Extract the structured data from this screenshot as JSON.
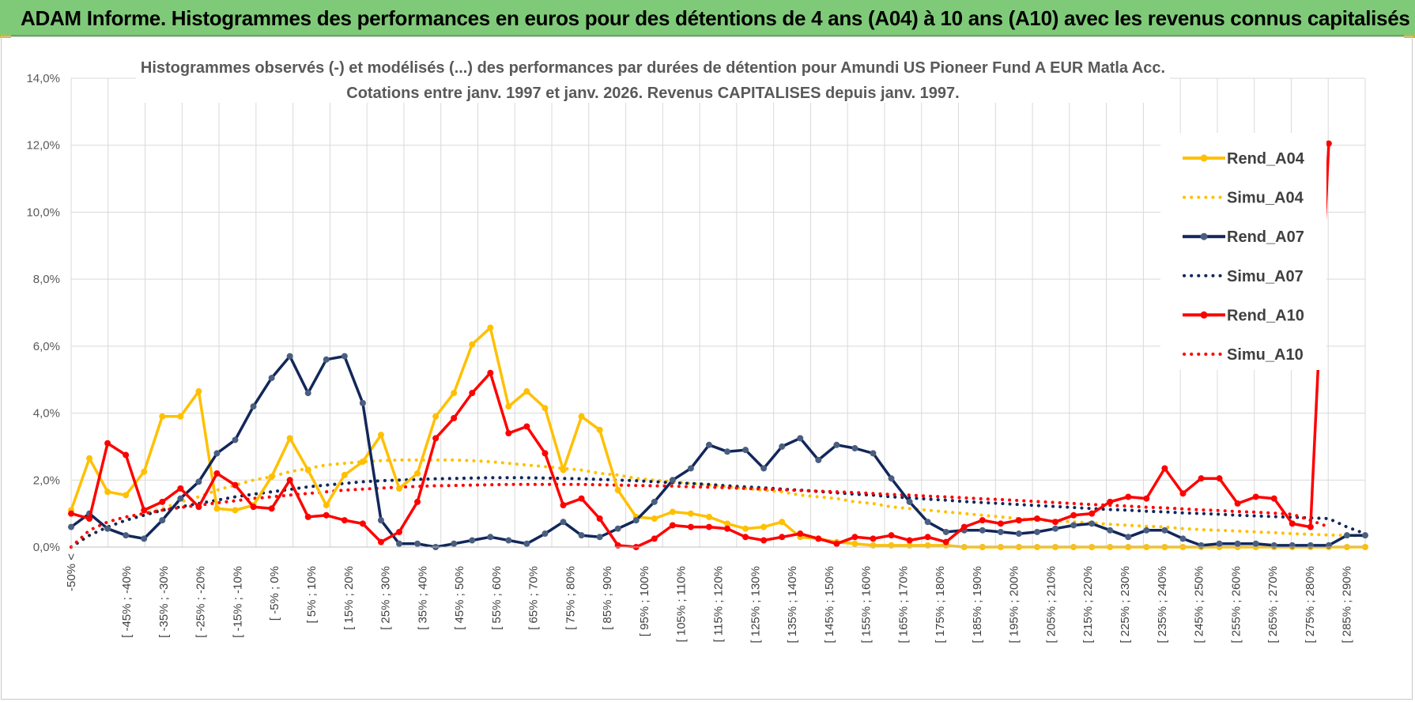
{
  "banner": {
    "title": "ADAM Informe. Histogrammes des performances en euros pour des détentions de 4 ans (A04) à 10 ans (A10) avec les revenus connus capitalisés"
  },
  "colors": {
    "A04": "#ffc000",
    "A07": "#12275a",
    "A10": "#ff0000",
    "grid": "#d9d9d9",
    "banner": "#7fca78"
  },
  "chart_data": {
    "type": "line",
    "title_line1": "Histogrammes observés (-) et modélisés (...) des performances par durées de détention pour Amundi US Pioneer Fund A EUR Matla Acc.",
    "title_line2": "Cotations entre janv. 1997 et janv. 2026. Revenus CAPITALISES depuis janv. 1997.",
    "ylim": [
      0,
      14
    ],
    "yticks": [
      "0,0%",
      "2,0%",
      "4,0%",
      "6,0%",
      "8,0%",
      "10,0%",
      "12,0%",
      "14,0%"
    ],
    "x_labels": [
      "-50% <",
      "[ -45% ; -40%",
      "[ -35% ; -30%",
      "[ -25% ; -20%",
      "[ -15% ; -10%",
      "[ -5% ; 0%",
      "[ 5% ; 10%",
      "[ 15% ; 20%",
      "[ 25% ; 30%",
      "[ 35% ; 40%",
      "[ 45% ; 50%",
      "[ 55% ; 60%",
      "[ 65% ; 70%",
      "[ 75% ; 80%",
      "[ 85% ; 90%",
      "[ 95% ; 100%",
      "[ 105% ; 110%",
      "[ 115% ; 120%",
      "[ 125% ; 130%",
      "[ 135% ; 140%",
      "[ 145% ; 150%",
      "[ 155% ; 160%",
      "[ 165% ; 170%",
      "[ 175% ; 180%",
      "[ 185% ; 190%",
      "[ 195% ; 200%",
      "[ 205% ; 210%",
      "[ 215% ; 220%",
      "[ 225% ; 230%",
      "[ 235% ; 240%",
      "[ 245% ; 250%",
      "[ 255% ; 260%",
      "[ 265% ; 270%",
      "[ 275% ; 280%",
      "[ 285% ; 290%"
    ],
    "series": [
      {
        "name": "Rend_A04",
        "style": "solid",
        "color_key": "A04",
        "values": [
          1.1,
          2.65,
          1.65,
          1.55,
          2.25,
          3.9,
          3.9,
          4.65,
          1.15,
          1.1,
          1.25,
          2.1,
          3.25,
          2.3,
          1.25,
          2.15,
          2.55,
          3.35,
          1.75,
          2.2,
          3.9,
          4.6,
          6.05,
          6.55,
          4.2,
          4.65,
          4.15,
          2.3,
          3.9,
          3.5,
          1.7,
          0.9,
          0.85,
          1.05,
          1.0,
          0.9,
          0.7,
          0.55,
          0.6,
          0.75,
          0.3,
          0.25,
          0.15,
          0.1,
          0.05,
          0.05,
          0.05,
          0.05,
          0.05,
          0.0,
          0.0,
          0.0,
          0.0,
          0.0,
          0.0,
          0.0,
          0.0,
          0.0,
          0.0,
          0.0,
          0.0,
          0.0,
          0.0,
          0.0,
          0.0,
          0.0,
          0.0,
          0.0,
          0.0,
          0.0,
          0.0,
          0.0
        ]
      },
      {
        "name": "Simu_A04",
        "style": "dotted",
        "color_key": "A04",
        "values": [
          0.0,
          0.35,
          0.6,
          0.8,
          1.0,
          1.15,
          1.35,
          1.5,
          1.7,
          1.85,
          2.0,
          2.1,
          2.25,
          2.35,
          2.45,
          2.5,
          2.55,
          2.58,
          2.6,
          2.6,
          2.6,
          2.6,
          2.58,
          2.55,
          2.5,
          2.45,
          2.4,
          2.35,
          2.3,
          2.2,
          2.15,
          2.05,
          2.0,
          1.95,
          1.9,
          1.85,
          1.8,
          1.75,
          1.7,
          1.65,
          1.55,
          1.5,
          1.45,
          1.35,
          1.3,
          1.2,
          1.15,
          1.1,
          1.05,
          1.0,
          0.95,
          0.9,
          0.85,
          0.8,
          0.78,
          0.75,
          0.72,
          0.68,
          0.65,
          0.62,
          0.6,
          0.55,
          0.52,
          0.5,
          0.48,
          0.45,
          0.43,
          0.4,
          0.38,
          0.36,
          0.35,
          0.33
        ]
      },
      {
        "name": "Rend_A07",
        "style": "solid",
        "color_key": "A07",
        "values": [
          0.6,
          1.0,
          0.55,
          0.35,
          0.25,
          0.8,
          1.45,
          1.95,
          2.8,
          3.2,
          4.2,
          5.05,
          5.7,
          4.6,
          5.6,
          5.7,
          4.3,
          0.8,
          0.1,
          0.1,
          0.0,
          0.1,
          0.2,
          0.3,
          0.2,
          0.1,
          0.4,
          0.75,
          0.35,
          0.3,
          0.55,
          0.8,
          1.35,
          2.0,
          2.35,
          3.05,
          2.85,
          2.9,
          2.35,
          3.0,
          3.25,
          2.6,
          3.05,
          2.95,
          2.8,
          2.05,
          1.35,
          0.75,
          0.45,
          0.5,
          0.5,
          0.45,
          0.4,
          0.45,
          0.55,
          0.65,
          0.7,
          0.5,
          0.3,
          0.5,
          0.5,
          0.25,
          0.05,
          0.1,
          0.1,
          0.1,
          0.05,
          0.05,
          0.05,
          0.05,
          0.35,
          0.35
        ]
      },
      {
        "name": "Simu_A07",
        "style": "dotted",
        "color_key": "A07",
        "values": [
          0.0,
          0.35,
          0.6,
          0.8,
          0.95,
          1.1,
          1.2,
          1.3,
          1.4,
          1.5,
          1.58,
          1.65,
          1.72,
          1.8,
          1.85,
          1.9,
          1.95,
          1.98,
          2.0,
          2.02,
          2.04,
          2.05,
          2.06,
          2.07,
          2.07,
          2.07,
          2.06,
          2.05,
          2.04,
          2.02,
          2.0,
          1.98,
          1.95,
          1.92,
          1.9,
          1.87,
          1.83,
          1.8,
          1.77,
          1.73,
          1.7,
          1.66,
          1.62,
          1.58,
          1.55,
          1.5,
          1.47,
          1.43,
          1.4,
          1.36,
          1.33,
          1.3,
          1.27,
          1.24,
          1.21,
          1.18,
          1.15,
          1.12,
          1.1,
          1.07,
          1.05,
          1.02,
          1.0,
          0.98,
          0.95,
          0.93,
          0.91,
          0.89,
          0.87,
          0.85,
          0.6,
          0.4
        ]
      },
      {
        "name": "Rend_A10",
        "style": "solid",
        "color_key": "A10",
        "values": [
          1.0,
          0.85,
          3.1,
          2.75,
          1.1,
          1.35,
          1.75,
          1.2,
          2.2,
          1.85,
          1.2,
          1.15,
          2.0,
          0.9,
          0.95,
          0.8,
          0.7,
          0.15,
          0.45,
          1.35,
          3.25,
          3.85,
          4.6,
          5.2,
          3.4,
          3.6,
          2.8,
          1.25,
          1.45,
          0.85,
          0.05,
          0.0,
          0.25,
          0.65,
          0.6,
          0.6,
          0.55,
          0.3,
          0.2,
          0.3,
          0.4,
          0.25,
          0.1,
          0.3,
          0.25,
          0.35,
          0.2,
          0.3,
          0.15,
          0.6,
          0.8,
          0.7,
          0.8,
          0.85,
          0.75,
          0.95,
          1.0,
          1.35,
          1.5,
          1.45,
          2.35,
          1.6,
          2.05,
          2.05,
          1.3,
          1.5,
          1.45,
          0.7,
          0.6,
          12.05
        ]
      },
      {
        "name": "Simu_A10",
        "style": "dotted",
        "color_key": "A10",
        "values": [
          0.0,
          0.5,
          0.75,
          0.9,
          1.0,
          1.1,
          1.18,
          1.25,
          1.32,
          1.38,
          1.45,
          1.5,
          1.55,
          1.6,
          1.65,
          1.7,
          1.73,
          1.76,
          1.79,
          1.81,
          1.83,
          1.84,
          1.85,
          1.86,
          1.87,
          1.87,
          1.87,
          1.87,
          1.87,
          1.86,
          1.85,
          1.84,
          1.83,
          1.82,
          1.8,
          1.79,
          1.77,
          1.75,
          1.73,
          1.71,
          1.69,
          1.67,
          1.65,
          1.63,
          1.6,
          1.57,
          1.55,
          1.52,
          1.5,
          1.47,
          1.44,
          1.42,
          1.39,
          1.36,
          1.33,
          1.3,
          1.27,
          1.25,
          1.22,
          1.19,
          1.17,
          1.14,
          1.11,
          1.09,
          1.06,
          1.04,
          1.01,
          0.98,
          0.8,
          0.6
        ]
      }
    ],
    "legend": [
      "Rend_A04",
      "Simu_A04",
      "Rend_A07",
      "Simu_A07",
      "Rend_A10",
      "Simu_A10"
    ],
    "legend_position": "right"
  }
}
